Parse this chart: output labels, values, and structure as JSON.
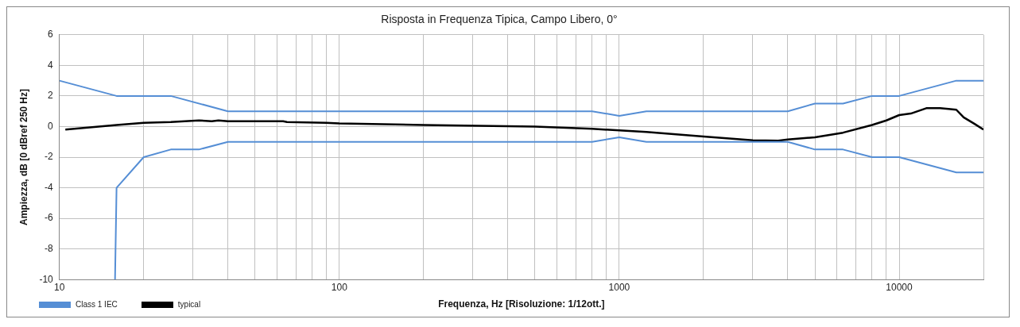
{
  "chart_data": {
    "type": "line",
    "title": "Risposta in Frequenza Tipica, Campo Libero, 0°",
    "xlabel": "Frequenza, Hz [Risoluzione: 1/12ott.]",
    "ylabel": "Ampiezza, dB [0 dBref 250 Hz]",
    "log": "x",
    "grid": true,
    "legend": "bottom left",
    "marker": "none",
    "line_style": "solid",
    "xlim": [
      10,
      20000
    ],
    "ylim": [
      -10,
      6
    ],
    "xticks": [
      10,
      {
        "value": 20,
        "label": null
      },
      {
        "value": 30,
        "label": null
      },
      {
        "value": 40,
        "label": null
      },
      {
        "value": 50,
        "label": null
      },
      {
        "value": 60,
        "label": null
      },
      {
        "value": 70,
        "label": null
      },
      {
        "value": 80,
        "label": null
      },
      {
        "value": 90,
        "label": null
      },
      100,
      {
        "value": 200,
        "label": null
      },
      {
        "value": 300,
        "label": null
      },
      {
        "value": 400,
        "label": null
      },
      {
        "value": 500,
        "label": null
      },
      {
        "value": 600,
        "label": null
      },
      {
        "value": 700,
        "label": null
      },
      {
        "value": 800,
        "label": null
      },
      {
        "value": 900,
        "label": null
      },
      1000,
      {
        "value": 2000,
        "label": null
      },
      {
        "value": 3000,
        "label": null
      },
      {
        "value": 4000,
        "label": null
      },
      {
        "value": 5000,
        "label": null
      },
      {
        "value": 6000,
        "label": null
      },
      {
        "value": 7000,
        "label": null
      },
      {
        "value": 8000,
        "label": null
      },
      {
        "value": 9000,
        "label": null
      },
      10000,
      {
        "value": 20000,
        "label": null
      }
    ],
    "yticks": [
      -10,
      -8,
      -6,
      -4,
      -2,
      0,
      2,
      4,
      6
    ],
    "series": [
      {
        "name": "Class 1 IEC",
        "color": "#558ed5",
        "x": [
          10,
          16,
          25,
          40,
          800,
          1000,
          1250,
          4000,
          5000,
          6300,
          8000,
          10000,
          16000,
          20000
        ],
        "values": [
          3,
          2,
          2,
          1,
          1,
          0.7,
          1,
          1,
          1.5,
          1.5,
          2,
          2,
          3,
          3
        ]
      },
      {
        "color": "#558ed5",
        "x": [
          15.8,
          16,
          20,
          25,
          31.5,
          40,
          800,
          1000,
          1250,
          4000,
          5000,
          6300,
          8000,
          10000,
          16000,
          20000
        ],
        "values": [
          -10,
          -4,
          -2,
          -1.5,
          -1.5,
          -1,
          -1,
          -0.7,
          -1,
          -1,
          -1.5,
          -1.5,
          -2,
          -2,
          -3,
          -3
        ]
      },
      {
        "name": "typical",
        "color": "#000000",
        "x": [
          10.5,
          16,
          20,
          25,
          31.5,
          35,
          37,
          40,
          63,
          65,
          90,
          100,
          200,
          315,
          500,
          800,
          1000,
          1250,
          2000,
          3000,
          3700,
          4000,
          5000,
          6300,
          8000,
          9000,
          10000,
          11000,
          12500,
          14000,
          15000,
          16000,
          17000,
          18500,
          20000
        ],
        "values": [
          -0.2,
          0.1,
          0.25,
          0.3,
          0.4,
          0.35,
          0.4,
          0.35,
          0.35,
          0.3,
          0.25,
          0.2,
          0.1,
          0.05,
          0,
          -0.15,
          -0.25,
          -0.35,
          -0.65,
          -0.9,
          -0.92,
          -0.85,
          -0.7,
          -0.4,
          0.1,
          0.4,
          0.75,
          0.85,
          1.2,
          1.2,
          1.15,
          1.1,
          0.6,
          0.2,
          -0.2
        ]
      }
    ]
  }
}
